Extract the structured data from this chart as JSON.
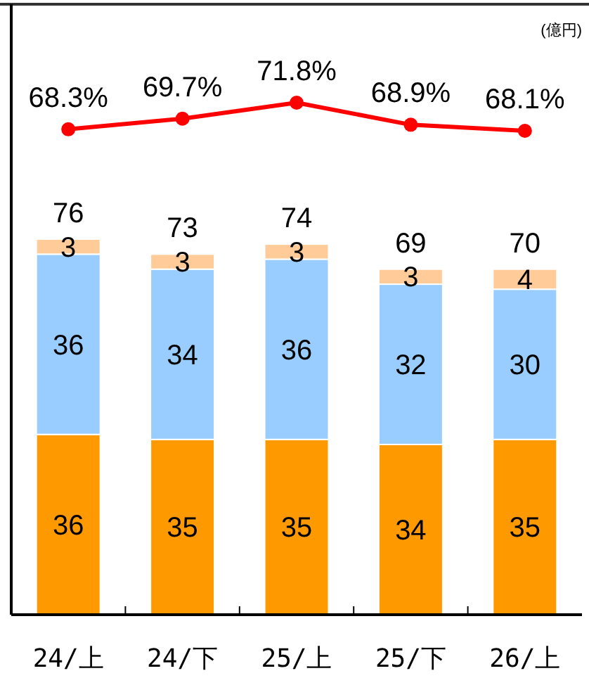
{
  "chart_data": [
    {
      "type": "line",
      "marker": "circle",
      "categories": [
        null,
        null,
        null,
        null,
        null
      ],
      "series": [
        {
          "color": "#ff0000",
          "values": [
            68.3,
            69.7,
            71.8,
            68.9,
            68.1
          ],
          "value_labels": [
            "68.3%",
            "69.7%",
            "71.8%",
            "68.9%",
            "68.1%"
          ]
        }
      ]
    },
    {
      "type": "bar",
      "stacked": true,
      "data_labels": true,
      "annotations": [
        "(億円)"
      ],
      "categories": [
        "24/上",
        "24/下",
        "25/上",
        "25/下",
        "26/上"
      ],
      "series": [
        {
          "color": "#ff9900",
          "values": [
            36,
            35,
            35,
            34,
            35
          ]
        },
        {
          "color": "#99ccff",
          "values": [
            36,
            34,
            36,
            32,
            30
          ]
        },
        {
          "color": "#ffcc99",
          "values": [
            3,
            3,
            3,
            3,
            4
          ]
        }
      ],
      "totals": [
        "76",
        "73",
        "74",
        "69",
        "70"
      ]
    }
  ]
}
